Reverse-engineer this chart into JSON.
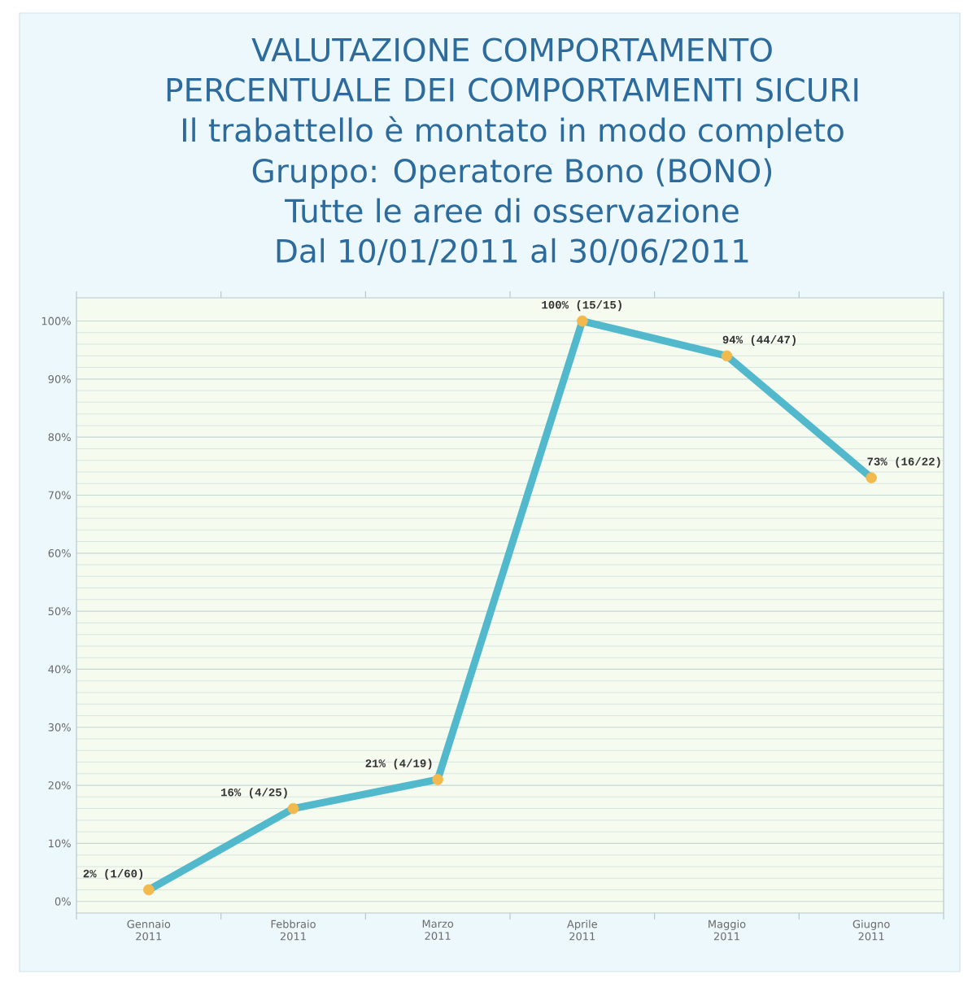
{
  "chart_data": {
    "type": "line",
    "title": "VALUTAZIONE COMPORTAMENTO PERCENTUALE DEI COMPORTAMENTI SICURI",
    "subtitle": "Il trabattello è montato in modo completo",
    "annotations": [
      "Gruppo: Operatore Bono (BONO)",
      "Tutte le aree di osservazione",
      "Dal 10/01/2011 al 30/06/2011"
    ],
    "categories": [
      "Gennaio 2011",
      "Febbraio 2011",
      "Marzo 2011",
      "Aprile 2011",
      "Maggio 2011",
      "Giugno 2011"
    ],
    "series": [
      {
        "color": "#52b9cc",
        "values": [
          2,
          16,
          21,
          100,
          94,
          73
        ],
        "value_labels": [
          "2% (1/60)",
          "16% (4/25)",
          "21% (4/19)",
          "100% (15/15)",
          "94% (44/47)",
          "73% (16/22)"
        ]
      }
    ],
    "ylim": [
      -2,
      104
    ],
    "yticks": [
      {
        "value": 0,
        "label": "0%"
      },
      {
        "value": 10,
        "label": "10%"
      },
      {
        "value": 20,
        "label": "20%"
      },
      {
        "value": 30,
        "label": "30%"
      },
      {
        "value": 40,
        "label": "40%"
      },
      {
        "value": 50,
        "label": "50%"
      },
      {
        "value": 60,
        "label": "60%"
      },
      {
        "value": 70,
        "label": "70%"
      },
      {
        "value": 80,
        "label": "80%"
      },
      {
        "value": 90,
        "label": "90%"
      },
      {
        "value": 100,
        "label": "100%"
      }
    ],
    "grid": "y",
    "marker": "circle",
    "line_style": "solid"
  }
}
